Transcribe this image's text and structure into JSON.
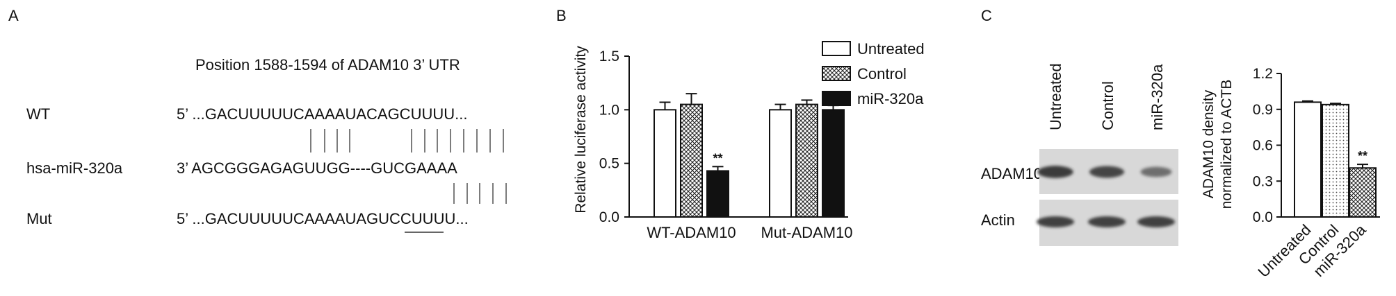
{
  "panel_a": {
    "letter": "A",
    "heading": "Position 1588-1594 of ADAM10 3’ UTR",
    "rows": [
      {
        "label": "WT",
        "seq": "5’ ...GACUUUUUCAAAAUACAGCUUUU..."
      },
      {
        "label": "hsa-miR-320a",
        "seq": "3’ AGCGGGAGAGUUGG----GUCGAAAA"
      },
      {
        "label": "Mut",
        "seq": "5’ ...GACUUUUUCAAAAUAGUCCUUUU..."
      }
    ]
  },
  "panel_b": {
    "letter": "B"
  },
  "panel_c": {
    "letter": "C",
    "blot_lanes": [
      "Untreated",
      "Control",
      "miR-320a"
    ],
    "blot_rows": [
      "ADAM10",
      "Actin"
    ],
    "adam10_band_intensity": [
      0.95,
      0.85,
      0.45
    ],
    "actin_band_intensity": [
      0.9,
      0.9,
      0.9
    ]
  },
  "colors": {
    "black": "#111111",
    "white": "#ffffff",
    "blot_bg": "#d8d8d8",
    "band": "#3a3a3a"
  },
  "chart_data": [
    {
      "type": "bar",
      "panel": "B",
      "categories": [
        "WT-ADAM10",
        "Mut-ADAM10"
      ],
      "series": [
        {
          "name": "Untreated",
          "pattern": "white",
          "values": [
            1.0,
            1.0
          ],
          "errors": [
            0.07,
            0.05
          ]
        },
        {
          "name": "Control",
          "pattern": "crosshatch",
          "values": [
            1.05,
            1.05
          ],
          "errors": [
            0.1,
            0.04
          ]
        },
        {
          "name": "miR-320a",
          "pattern": "black",
          "values": [
            0.43,
            1.0
          ],
          "errors": [
            0.04,
            0.04
          ]
        }
      ],
      "annotations": [
        {
          "category": "WT-ADAM10",
          "series": "miR-320a",
          "text": "**"
        }
      ],
      "ylabel": "Relative luciferase activity",
      "ylim": [
        0,
        1.5
      ],
      "yticks": [
        "0.0",
        "0.5",
        "1.0",
        "1.5"
      ],
      "legend": "top-right"
    },
    {
      "type": "bar",
      "panel": "C",
      "categories": [
        "Untreated",
        "Control",
        "miR-320a"
      ],
      "values": [
        0.96,
        0.94,
        0.41
      ],
      "errors": [
        0.01,
        0.01,
        0.03
      ],
      "patterns": [
        "white",
        "dots",
        "crosshatch"
      ],
      "annotations": [
        {
          "category": "miR-320a",
          "text": "**"
        }
      ],
      "ylabel": "ADAM10 density normalized to ACTB",
      "ylabel_lines": [
        "ADAM10 density",
        "normalized to ACTB"
      ],
      "ylim": [
        0,
        1.2
      ],
      "yticks": [
        "0.0",
        "0.3",
        "0.6",
        "0.9",
        "1.2"
      ]
    }
  ]
}
